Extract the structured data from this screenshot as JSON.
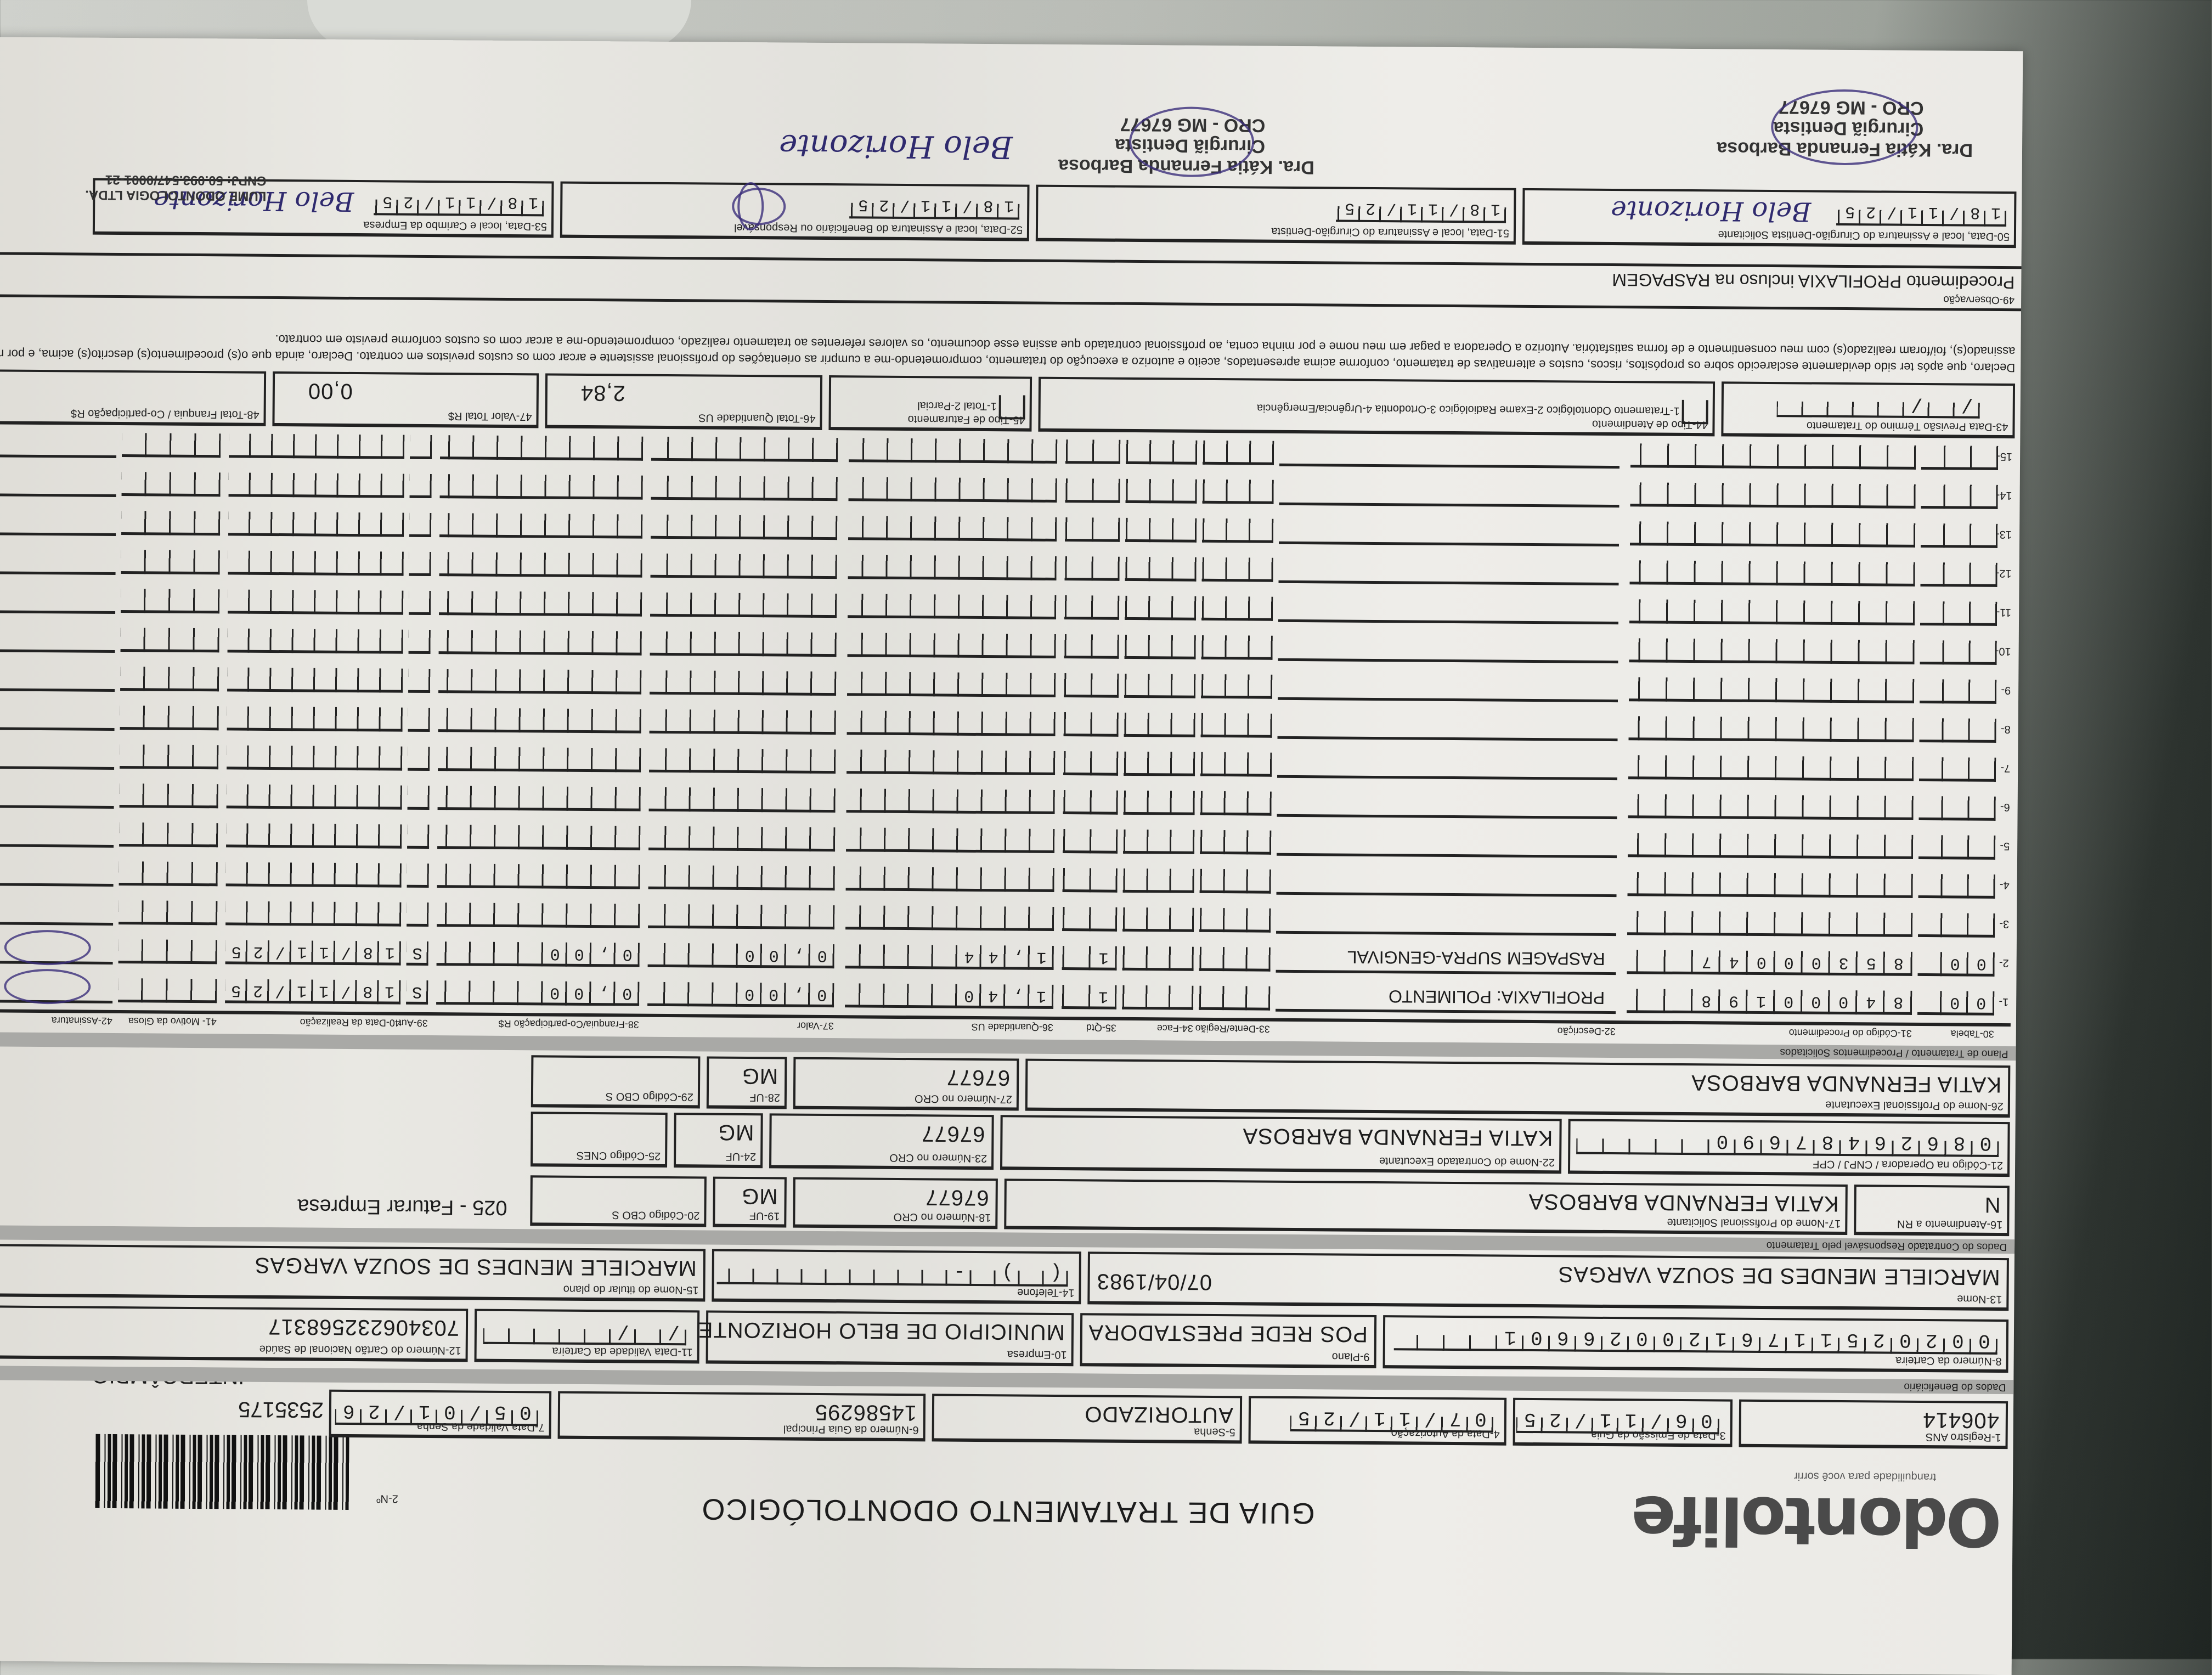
{
  "header": {
    "logo": "Odontolife",
    "tagline": "tranquilidade para você sorrir",
    "title": "GUIA DE TRATAMENTO ODONTOLÓGICO",
    "numero_label": "2-Nº",
    "numero": "2535175",
    "tipo": "INTERCÂMBIO"
  },
  "guia": {
    "registro_ans": {
      "label": "1-Registro ANS",
      "value": "406414"
    },
    "data_emissao": {
      "label": "3-Data de Emissão da Guia",
      "value": "06/11/25"
    },
    "data_autorizacao": {
      "label": "4-Data da Autorização",
      "value": "07/11/25"
    },
    "senha": {
      "label": "5-Senha",
      "value": "AUTORIZADO"
    },
    "guia_principal": {
      "label": "6-Número da Guia Principal",
      "value": "14586295"
    },
    "validade_senha": {
      "label": "7-Data Validade da Senha",
      "value": "05/01/26"
    }
  },
  "beneficiario": {
    "section": "Dados do Beneficiário",
    "carteira": {
      "label": "8-Número da Carteira",
      "value": "0020251176120026601"
    },
    "plano": {
      "label": "9-Plano",
      "value": "POS REDE PRESTADORA"
    },
    "empresa": {
      "label": "10-Empresa",
      "value": "MUNICIPIO DE BELO HORIZONTE"
    },
    "validade_carteira": {
      "label": "11-Data Validade da Carteira",
      "value": "  /  /  "
    },
    "cns": {
      "label": "12-Número do Cartão Nacional de Saúde",
      "value": "703406232568317"
    },
    "nome": {
      "label": "13-Nome",
      "value": "MARCIELE MENDES DE SOUZA VARGAS"
    },
    "telefone": {
      "label": "14-Telefone",
      "value": "(   )     -    ",
      "extra": "07/04/1983"
    },
    "titular": {
      "label": "15-Nome do titular do plano",
      "value": "MARCIELE MENDES DE SOUZA VARGAS"
    }
  },
  "contratado": {
    "section": "Dados do Contratado Responsável pelo Tratamento",
    "rn": {
      "label": "16-Atendimento a RN",
      "value": "N"
    },
    "solicitante": {
      "label": "17-Nome do Profissional Solicitante",
      "value": "KATIA FERNANDA BARBOSA"
    },
    "cro_solic": {
      "label": "18-Número no CRO",
      "value": "67677"
    },
    "uf_solic": {
      "label": "19-UF",
      "value": "MG"
    },
    "cbo_solic": {
      "label": "20-Código CBO S",
      "value": ""
    },
    "faturamento_note": "025 - Faturar Empresa",
    "codigo_operadora": {
      "label": "21-Código na Operadora / CNPJ / CPF",
      "value": "08626487690"
    },
    "executante_contratado": {
      "label": "22-Nome do Contratado Executante",
      "value": "KATIA FERNANDA BARBOSA"
    },
    "cro_exec": {
      "label": "23-Número no CRO",
      "value": "67677"
    },
    "uf_exec": {
      "label": "24-UF",
      "value": "MG"
    },
    "cnes": {
      "label": "25-Código CNES",
      "value": ""
    },
    "profissional_exec": {
      "label": "26-Nome do Profissional Executante",
      "value": "KATIA FERNANDA BARBOSA"
    },
    "cro_prof": {
      "label": "27-Número no CRO",
      "value": "67677"
    },
    "uf_prof": {
      "label": "28-UF",
      "value": "MG"
    },
    "cbo_prof": {
      "label": "29-Código CBO S",
      "value": ""
    }
  },
  "procedimentos": {
    "section": "Plano de Tratamento / Procedimentos Solicitados",
    "headers": [
      "30-Tabela",
      "31-Código do Procedimento",
      "32-Descrição",
      "33-Dente/Região",
      "34-Face",
      "35-Qtd",
      "36-Quantidade US",
      "37-Valor",
      "38-Franquia/Co-participação R$",
      "39-Aut",
      "40-Data da Realização",
      "41- Motivo da Glosa",
      "42-Assinatura"
    ],
    "rows": [
      {
        "n": "1",
        "tabela": "00",
        "codigo": "84000198",
        "descricao": "PROFILAXIA: POLIMENTO",
        "dente": "",
        "face": "",
        "qtd": "1",
        "us": "1,40",
        "valor": "0,00",
        "franquia": "0,00",
        "aut": "S",
        "data": "18/11/25"
      },
      {
        "n": "2",
        "tabela": "00",
        "codigo": "85300047",
        "descricao": "RASPAGEM SUPRA-GENGIVAL",
        "dente": "",
        "face": "",
        "qtd": "1",
        "us": "1,44",
        "valor": "0,00",
        "franquia": "0,00",
        "aut": "S",
        "data": "18/11/25"
      },
      {
        "n": "3"
      },
      {
        "n": "4"
      },
      {
        "n": "5"
      },
      {
        "n": "6"
      },
      {
        "n": "7"
      },
      {
        "n": "8"
      },
      {
        "n": "9"
      },
      {
        "n": "10"
      },
      {
        "n": "11"
      },
      {
        "n": "12"
      },
      {
        "n": "13"
      },
      {
        "n": "14"
      },
      {
        "n": "15"
      }
    ]
  },
  "totais": {
    "previsao": {
      "label": "43-Data Previsão Término do Tratamento",
      "value": "  /  /  "
    },
    "tipo_atendimento": {
      "label": "44-Tipo de Atendimento",
      "options": "1-Tratamento Odontológico  2-Exame Radiológico  3-Ortodontia  4-Urgência/Emergência"
    },
    "tipo_faturamento": {
      "label": "45-Tipo de Faturamento",
      "options": "1-Total  2-Parcial"
    },
    "total_us": {
      "label": "46-Total Quantidade US",
      "value": "2,84"
    },
    "valor_total": {
      "label": "47-Valor Total R$",
      "value": "0,00"
    },
    "total_franquia": {
      "label": "48-Total Franquia / Co-participação R$",
      "value": ""
    }
  },
  "declaracao": "Declaro, que após ter sido devidamente esclarecido sobre os propósitos, riscos, custos e alternativas de tratamento, conforme acima apresentados, aceito e autorizo a execução do tratamento, comprometendo-me a cumprir as orientações do profissional assistente e arcar com os custos previstos em contrato. Declaro, ainda que o(s) procedimento(s) descrito(s) acima, e por mim assinado(s), foi/foram realizado(s) com meu consentimento e de forma satisfatória. Autorizo a Operadora a pagar em meu nome e por minha conta, ao profissional contratado que assina esse documento, os valores referentes ao tratamento realizado, comprometendo-me a arcar com os custos conforme previsto em contrato.",
  "observacao": {
    "label": "49-Observação",
    "value": "Procedimento PROFILAXIA incluso na RASPAGEM"
  },
  "assinaturas": {
    "solicitante": {
      "label": "50-Data, local e Assinatura do Cirurgião-Dentista Solicitante",
      "date": "18/11/25",
      "handwritten": "Belo Horizonte"
    },
    "cirurgiao": {
      "label": "51-Data, local e Assinatura do Cirurgião-Dentista",
      "date": "18/11/25"
    },
    "beneficiario": {
      "label": "52-Data, local e Assinatura do Beneficiário ou Responsável",
      "date": "18/11/25",
      "handwritten": "Belo Horizonte"
    },
    "empresa": {
      "label": "53-Data, local e Carimbo da Empresa",
      "date": "18/11/25",
      "handwritten": "Belo Horizonte"
    }
  },
  "carimbos": {
    "dentista": [
      "Dra. Kátia Fernanda Barbosa",
      "Cirurgiã Dentista",
      "CRO - MG 67677"
    ],
    "empresa": [
      "LUME ODONTOLOGIA LTDA.",
      "CNPJ: 50.093.547/0001-21"
    ]
  }
}
